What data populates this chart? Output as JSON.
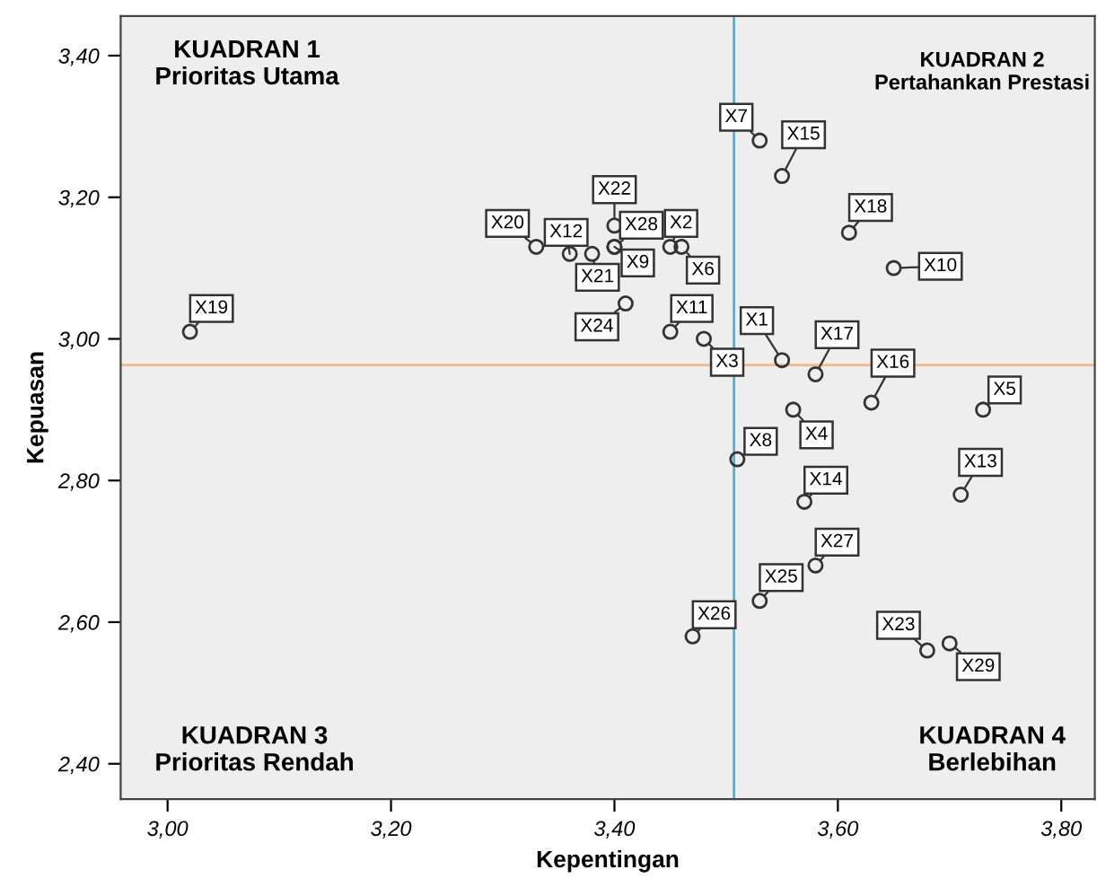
{
  "chart_data": {
    "type": "scatter",
    "xlabel": "Kepentingan",
    "ylabel": "Kepuasan",
    "xlim": [
      2.958,
      3.83
    ],
    "ylim": [
      2.35,
      3.456
    ],
    "xticks": [
      {
        "value": 3.0,
        "label": "3,00"
      },
      {
        "value": 3.2,
        "label": "3,20"
      },
      {
        "value": 3.4,
        "label": "3,40"
      },
      {
        "value": 3.6,
        "label": "3,60"
      },
      {
        "value": 3.8,
        "label": "3,80"
      }
    ],
    "yticks": [
      {
        "value": 2.4,
        "label": "2,40"
      },
      {
        "value": 2.6,
        "label": "2,60"
      },
      {
        "value": 2.8,
        "label": "2,80"
      },
      {
        "value": 3.0,
        "label": "3,00"
      },
      {
        "value": 3.2,
        "label": "3,20"
      },
      {
        "value": 3.4,
        "label": "3,40"
      }
    ],
    "grid": false,
    "marker": "circle",
    "series": [
      {
        "color": "#333333",
        "x": [
          3.55,
          3.45,
          3.48,
          3.56,
          3.73,
          3.46,
          3.53,
          3.51,
          3.4,
          3.65,
          3.45,
          3.36,
          3.71,
          3.57,
          3.55,
          3.63,
          3.58,
          3.61,
          3.02,
          3.33,
          3.38,
          3.4,
          3.68,
          3.41,
          3.53,
          3.47,
          3.58,
          3.4,
          3.7
        ],
        "values": [
          2.97,
          3.13,
          3.0,
          2.9,
          2.9,
          3.13,
          3.28,
          2.83,
          3.13,
          3.1,
          3.01,
          3.12,
          2.78,
          2.77,
          3.23,
          2.91,
          2.95,
          3.15,
          3.01,
          3.13,
          3.12,
          3.16,
          2.56,
          3.05,
          2.63,
          2.58,
          2.68,
          3.13,
          2.57
        ],
        "value_labels": [
          "X1",
          "X2",
          "X3",
          "X4",
          "X5",
          "X6",
          "X7",
          "X8",
          "X9",
          "X10",
          "X11",
          "X12",
          "X13",
          "X14",
          "X15",
          "X16",
          "X17",
          "X18",
          "X19",
          "X20",
          "X21",
          "X22",
          "X23",
          "X24",
          "X25",
          "X26",
          "X27",
          "X28",
          "X29"
        ]
      }
    ],
    "ref_lines": [
      {
        "axis": "x",
        "value": 3.507,
        "color": "#5aaed0"
      },
      {
        "axis": "y",
        "value": 2.963,
        "color": "#f2b98a"
      }
    ],
    "annotations": [
      "KUADRAN 1\nPrioritas Utama",
      "KUADRAN 2\nPertahankan Prestasi",
      "KUADRAN 3\nPrioritas Rendah",
      "KUADRAN 4\nBerlebihan"
    ]
  }
}
